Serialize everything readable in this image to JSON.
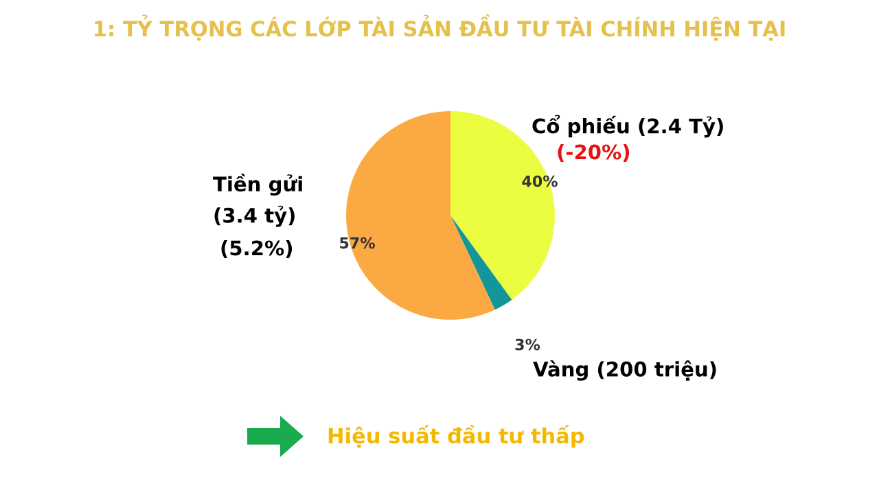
{
  "chart_data": {
    "type": "pie",
    "title": "1: TỶ TRỌNG CÁC LỚP TÀI SẢN ĐẦU TƯ TÀI CHÍNH HIỆN TẠI",
    "categories": [
      "Cổ phiếu (2.4 Tỷ)",
      "Vàng (200 triệu)",
      "Tiền gửi\n(3.4 tỷ)"
    ],
    "values": [
      40,
      3,
      57
    ],
    "value_labels": [
      "40%",
      "3%",
      "57%"
    ],
    "colors": [
      "#ecfc40",
      "#14959a",
      "#fbaa43"
    ],
    "annotations": [
      "(-20%)",
      "(5.2%)",
      "Hiệu suất đầu tư thấp"
    ]
  }
}
